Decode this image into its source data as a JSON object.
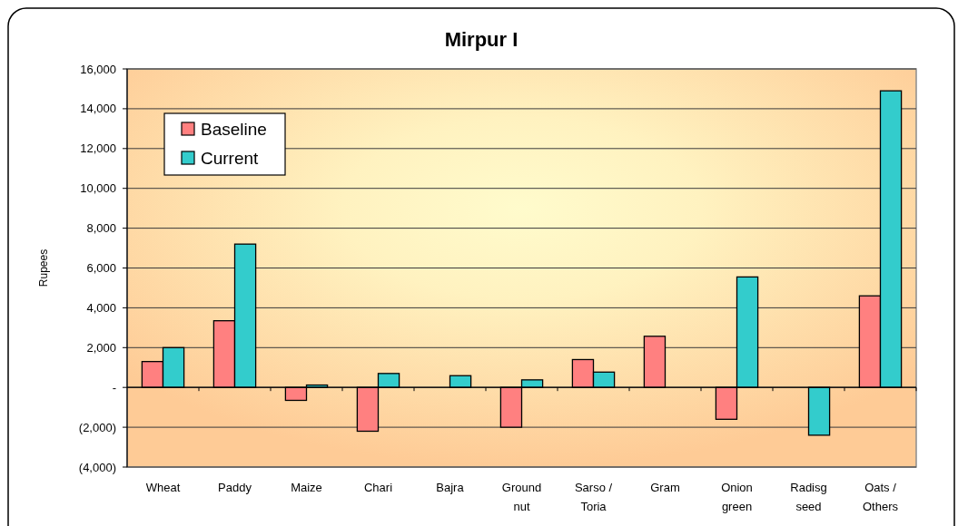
{
  "chart_data": {
    "type": "bar",
    "title": "Mirpur I",
    "ylabel": "Rupees",
    "categories": [
      "Wheat",
      "Paddy",
      "Maize",
      "Chari",
      "Bajra",
      "Ground nut",
      "Sarso / Toria",
      "Gram",
      "Onion green",
      "Radisg seed",
      "Oats / Others"
    ],
    "series": [
      {
        "name": "Baseline",
        "color": "#ff8080",
        "values": [
          1300,
          3350,
          -650,
          -2200,
          null,
          -2000,
          1400,
          2570,
          -1600,
          null,
          4600
        ]
      },
      {
        "name": "Current",
        "color": "#33cccc",
        "values": [
          2000,
          7200,
          120,
          700,
          590,
          380,
          770,
          null,
          5550,
          -2400,
          14900
        ]
      }
    ],
    "ylim": [
      -4000,
      16000
    ],
    "yticks": [
      {
        "value": -4000,
        "label": "(4,000)"
      },
      {
        "value": -2000,
        "label": "(2,000)"
      },
      {
        "value": 0,
        "label": "-"
      },
      {
        "value": 2000,
        "label": "2,000"
      },
      {
        "value": 4000,
        "label": "4,000"
      },
      {
        "value": 6000,
        "label": "6,000"
      },
      {
        "value": 8000,
        "label": "8,000"
      },
      {
        "value": 10000,
        "label": "10,000"
      },
      {
        "value": 12000,
        "label": "12,000"
      },
      {
        "value": 14000,
        "label": "14,000"
      },
      {
        "value": 16000,
        "label": "16,000"
      }
    ],
    "grid": "y",
    "legend": "top left"
  }
}
